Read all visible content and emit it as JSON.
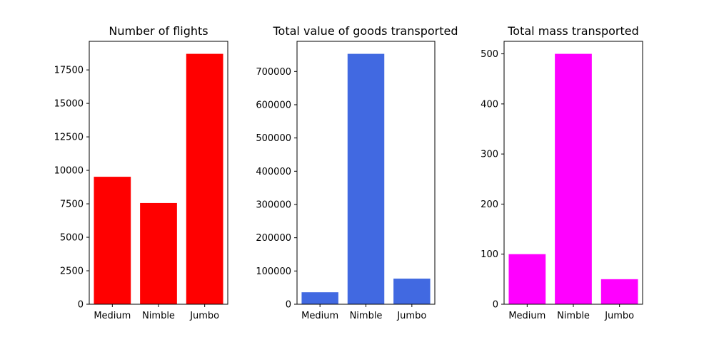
{
  "chart_data": [
    {
      "type": "bar",
      "title": "Number of flights",
      "categories": [
        "Medium",
        "Nimble",
        "Jumbo"
      ],
      "values": [
        9520,
        7560,
        18700
      ],
      "color": "#ff0000",
      "ylim": [
        0,
        19635
      ],
      "yticks": [
        0,
        2500,
        5000,
        7500,
        10000,
        12500,
        15000,
        17500
      ],
      "xlabel": "",
      "ylabel": "",
      "grid": false
    },
    {
      "type": "bar",
      "title": "Total value of goods transported",
      "categories": [
        "Medium",
        "Nimble",
        "Jumbo"
      ],
      "values": [
        36000,
        753000,
        77000
      ],
      "color": "#4169e1",
      "ylim": [
        0,
        790650
      ],
      "yticks": [
        0,
        100000,
        200000,
        300000,
        400000,
        500000,
        600000,
        700000
      ],
      "xlabel": "",
      "ylabel": "",
      "grid": false
    },
    {
      "type": "bar",
      "title": "Total mass transported",
      "categories": [
        "Medium",
        "Nimble",
        "Jumbo"
      ],
      "values": [
        100,
        500,
        50
      ],
      "color": "#ff00ff",
      "ylim": [
        0,
        525
      ],
      "yticks": [
        0,
        100,
        200,
        300,
        400,
        500
      ],
      "xlabel": "",
      "ylabel": "",
      "grid": false
    }
  ]
}
